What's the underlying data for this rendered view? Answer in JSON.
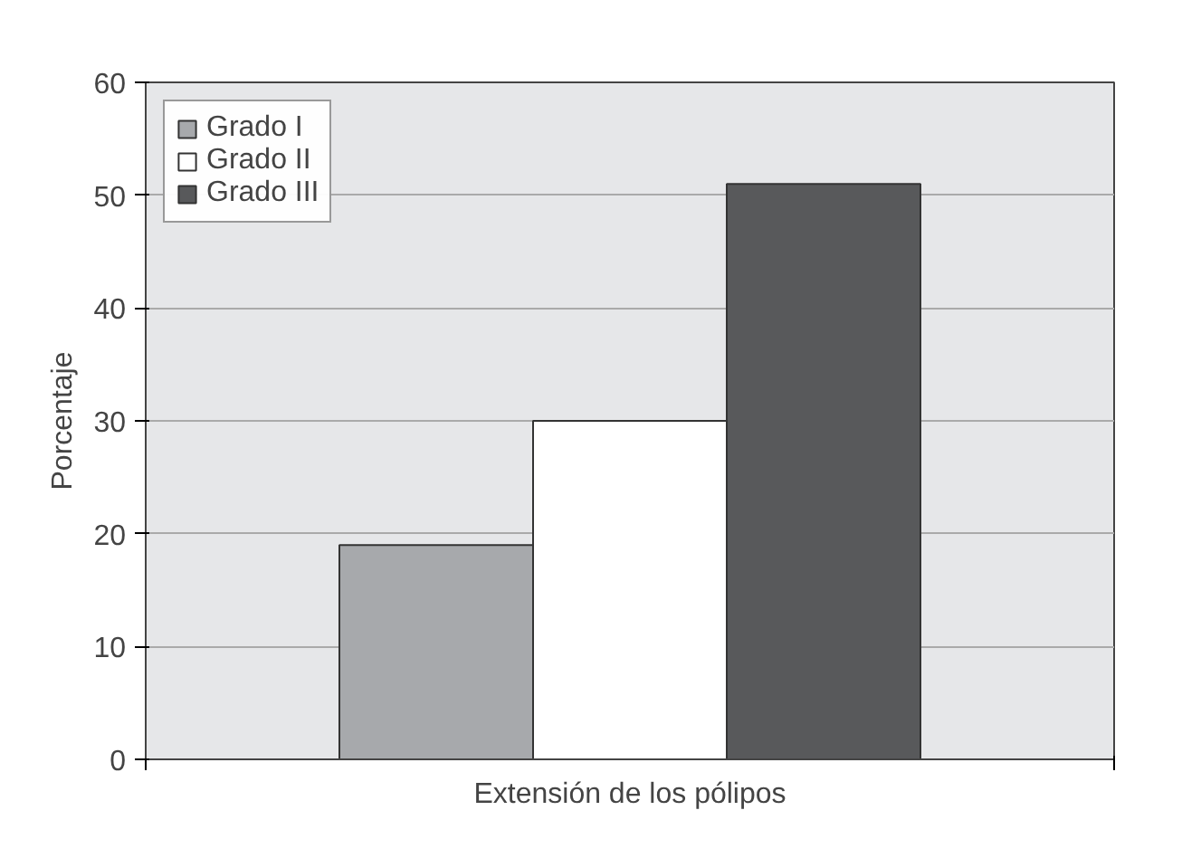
{
  "chart_data": {
    "type": "bar",
    "xlabel": "Extensión de los pólipos",
    "ylabel": "Porcentaje",
    "categories": [
      null
    ],
    "series": [
      {
        "name": "Grado I",
        "color": "#a7a9ac",
        "values": [
          19
        ]
      },
      {
        "name": "Grado II",
        "color": "#ffffff",
        "values": [
          30
        ]
      },
      {
        "name": "Grado III",
        "color": "#58595b",
        "values": [
          51
        ]
      }
    ],
    "ylim": [
      0,
      60
    ],
    "yticks": [
      0,
      10,
      20,
      30,
      40,
      50,
      60
    ],
    "grid": "y",
    "legend": "top left"
  }
}
